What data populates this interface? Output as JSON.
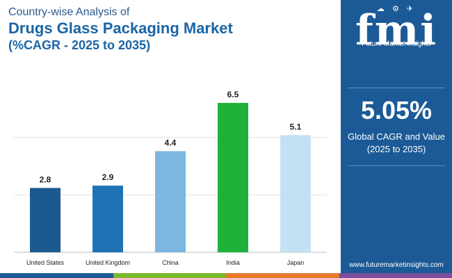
{
  "header": {
    "subtitle": "Country-wise Analysis of",
    "title": "Drugs Glass Packaging Market",
    "period": "(%CAGR - 2025 to 2035)"
  },
  "sidebar": {
    "logo_text": "fmi",
    "logo_sub": "Future Market Insights",
    "logo_icons": "☁ ⚙ ✈",
    "cagr_value": "5.05%",
    "cagr_label_line1": "Global CAGR and Value",
    "cagr_label_line2": "(2025 to 2035)",
    "url": "www.futuremarketinsights.com"
  },
  "colors": {
    "sidebar_bg": "#1b5a96",
    "bottom_bar": [
      "#1b5a96",
      "#7ab929",
      "#e8792b",
      "#7b4ea0"
    ]
  },
  "chart_data": {
    "type": "bar",
    "title": "Drugs Glass Packaging Market (%CAGR - 2025 to 2035)",
    "xlabel": "",
    "ylabel": "",
    "ylim": [
      0,
      7.5
    ],
    "grid": true,
    "categories": [
      "United States",
      "United Kingdom",
      "China",
      "India",
      "Japan"
    ],
    "values": [
      2.8,
      2.9,
      4.4,
      6.5,
      5.1
    ],
    "value_labels": [
      "2.8",
      "2.9",
      "4.4",
      "6.5",
      "5.1"
    ],
    "colors": [
      "#1b5a8f",
      "#1f72b4",
      "#7cb6e1",
      "#1fb23a",
      "#c4e1f3"
    ]
  }
}
